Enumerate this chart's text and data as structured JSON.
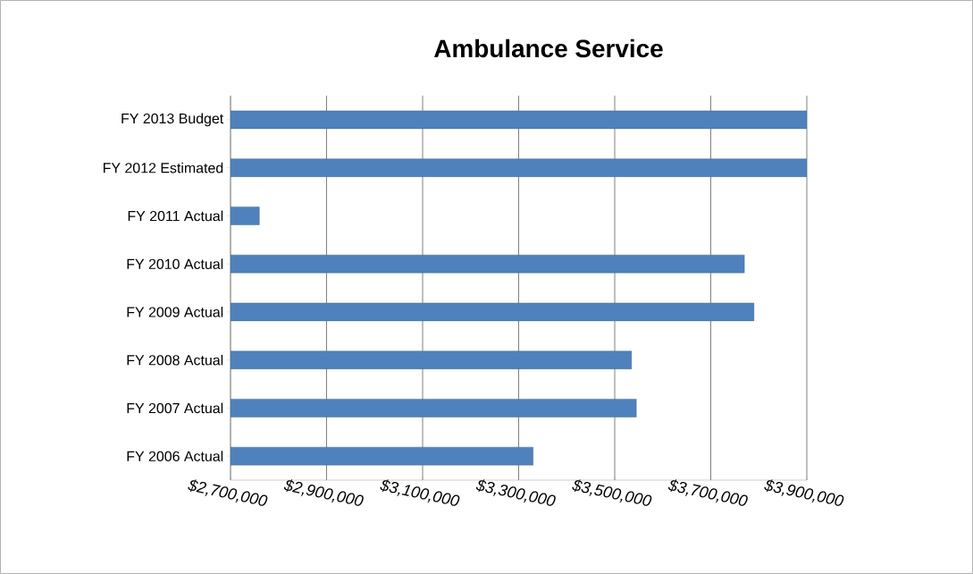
{
  "chart_data": {
    "type": "bar",
    "orientation": "horizontal",
    "title": "Ambulance Service",
    "categories": [
      "FY 2013 Budget",
      "FY 2012 Estimated",
      "FY 2011 Actual",
      "FY 2010 Actual",
      "FY 2009 Actual",
      "FY 2008 Actual",
      "FY 2007 Actual",
      "FY 2006 Actual"
    ],
    "values": [
      3900000,
      3900000,
      2760000,
      3770000,
      3790000,
      3535000,
      3545000,
      3330000
    ],
    "color": "#4f81bd",
    "xlim": [
      2700000,
      3900000
    ],
    "xticks": [
      {
        "value": 2700000,
        "label": "$2,700,000"
      },
      {
        "value": 2900000,
        "label": "$2,900,000"
      },
      {
        "value": 3100000,
        "label": "$3,100,000"
      },
      {
        "value": 3300000,
        "label": "$3,300,000"
      },
      {
        "value": 3500000,
        "label": "$3,500,000"
      },
      {
        "value": 3700000,
        "label": "$3,700,000"
      },
      {
        "value": 3900000,
        "label": "$3,900,000"
      }
    ],
    "grid": "x"
  }
}
